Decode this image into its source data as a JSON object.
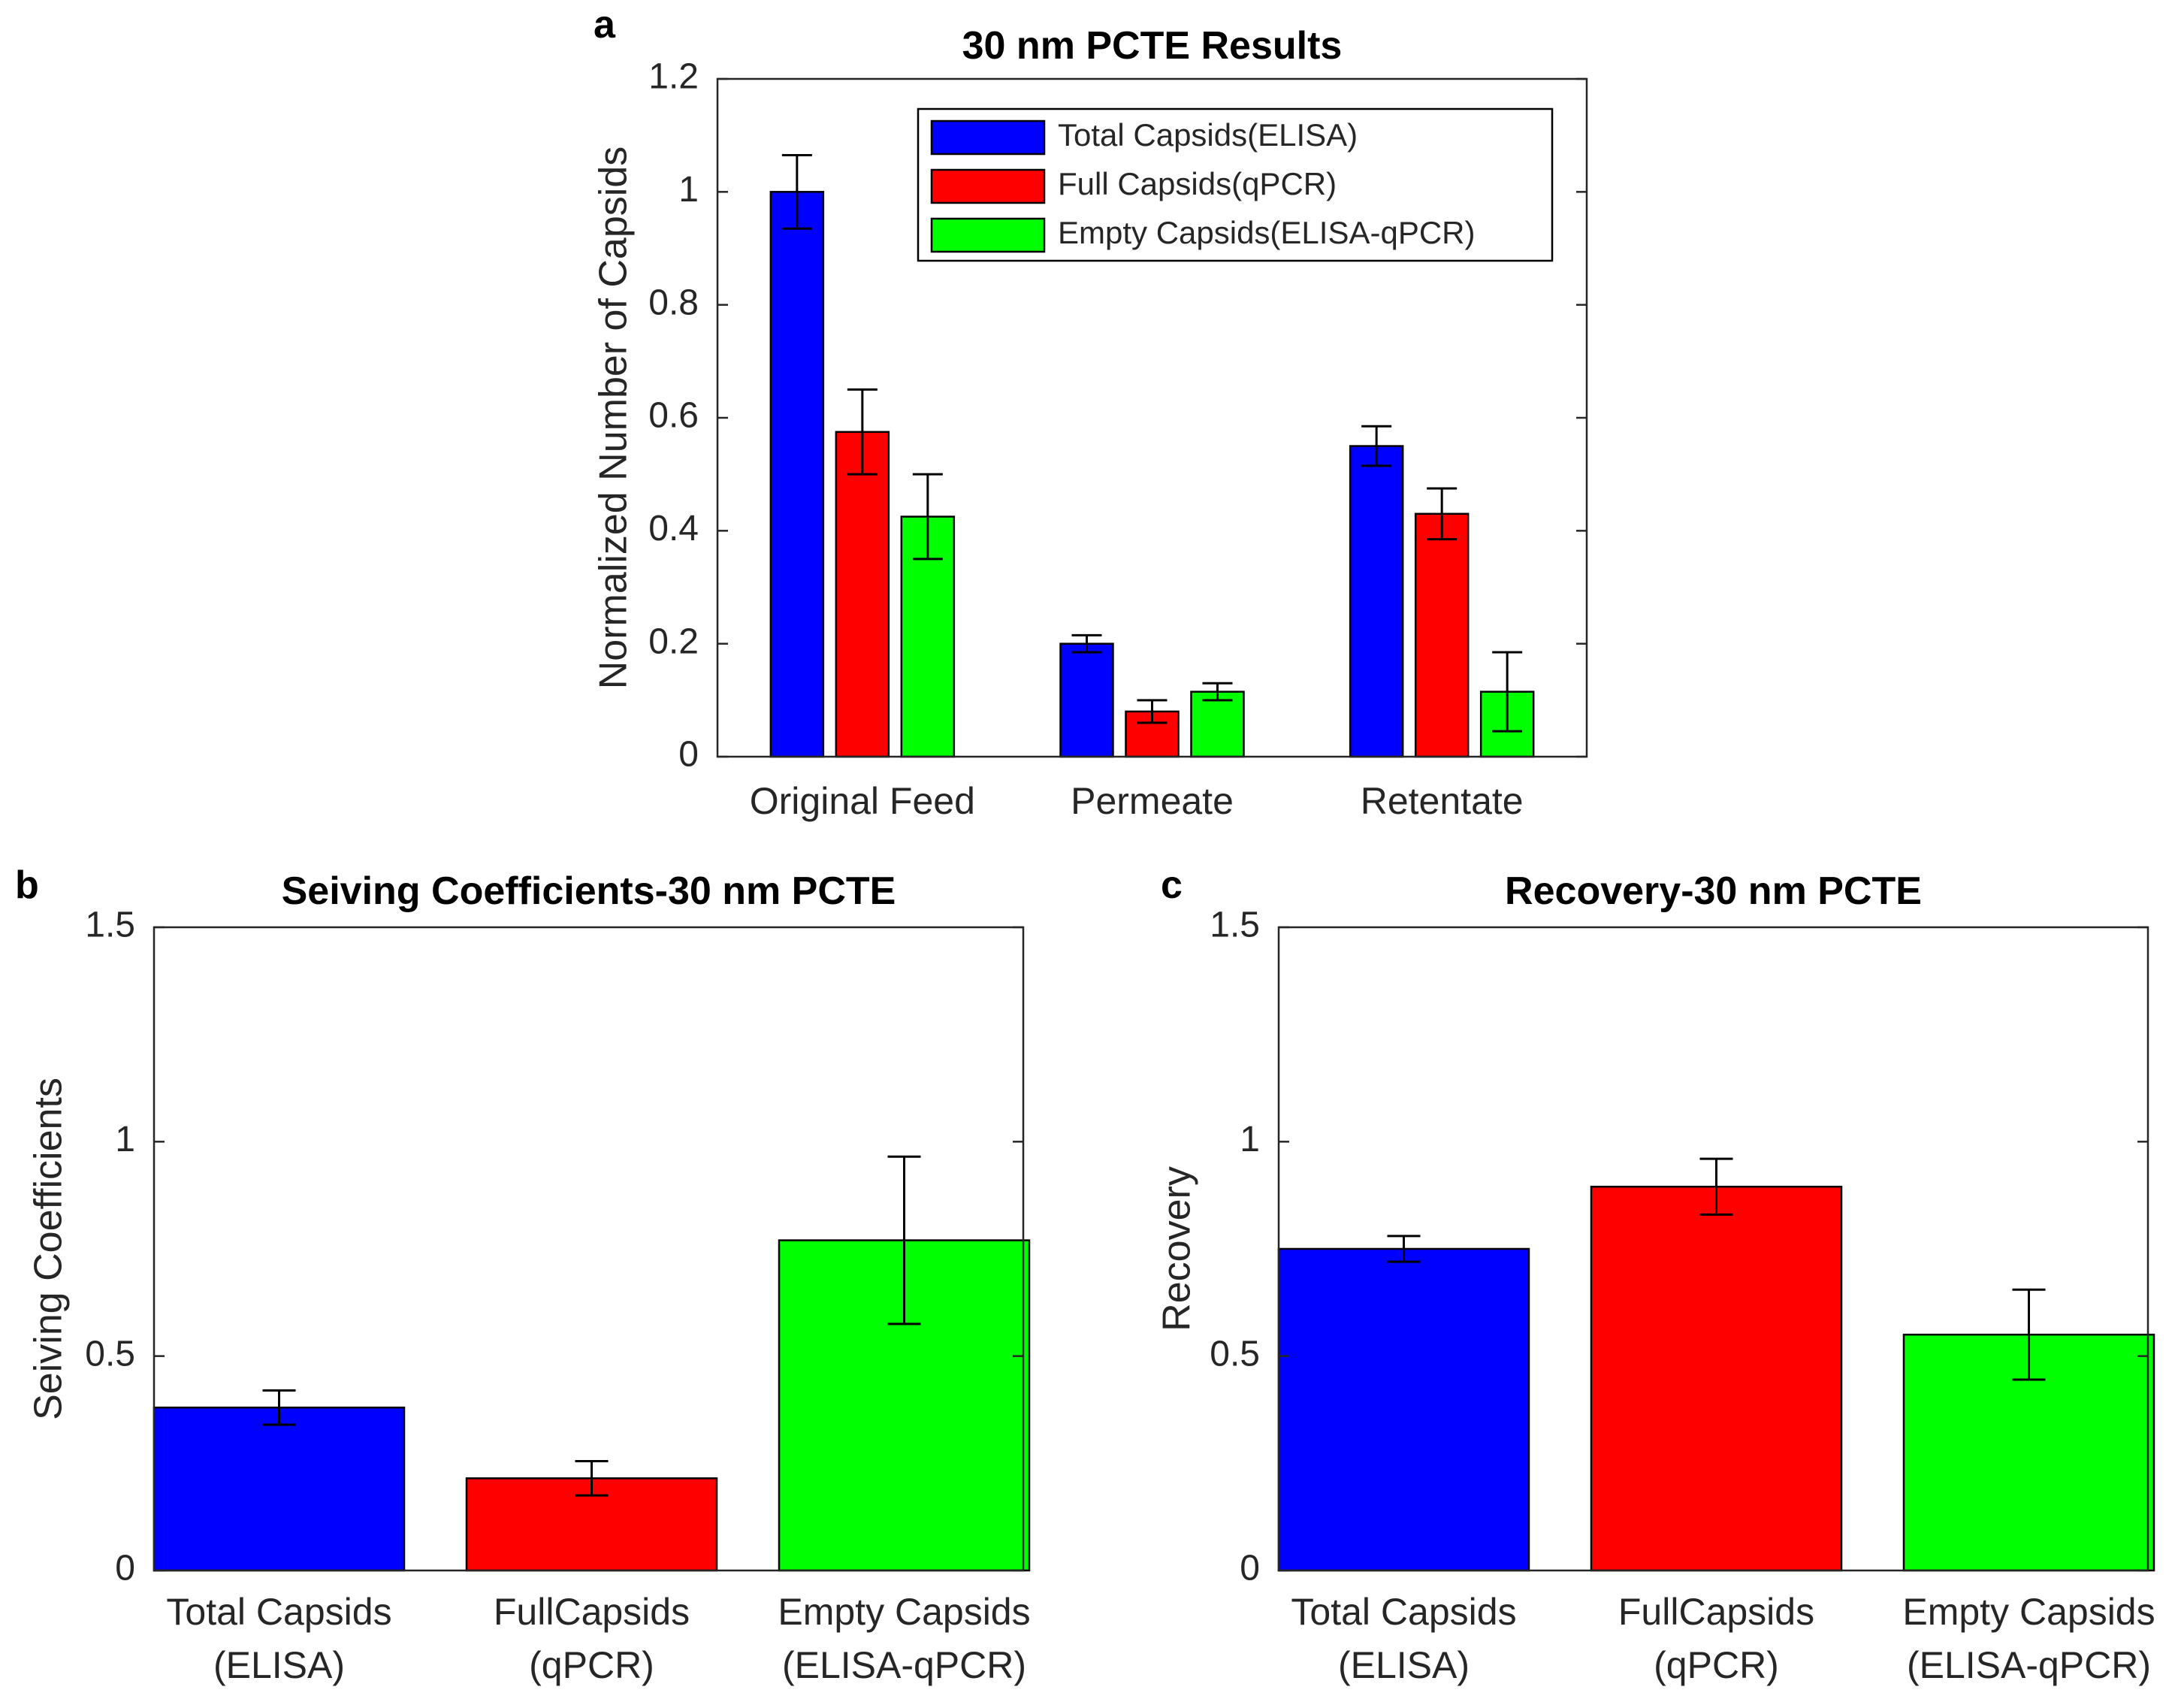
{
  "chart_data": [
    {
      "panel": "a",
      "type": "bar",
      "title": "30 nm PCTE Results",
      "xlabel": "",
      "ylabel": "Normalized Number of Capsids",
      "ylim": [
        0,
        1.2
      ],
      "yticks": [
        0,
        0.2,
        0.4,
        0.6,
        0.8,
        1,
        1.2
      ],
      "ytick_labels": [
        "0",
        "0.2",
        "0.4",
        "0.6",
        "0.8",
        "1",
        "1.2"
      ],
      "categories": [
        "Original Feed",
        "Permeate",
        "Retentate"
      ],
      "series": [
        {
          "name": "Total Capsids(ELISA)",
          "color": "#0000ff",
          "values": [
            1.0,
            0.2,
            0.55
          ],
          "errors": [
            0.065,
            0.015,
            0.035
          ]
        },
        {
          "name": "Full Capsids(qPCR)",
          "color": "#ff0000",
          "values": [
            0.575,
            0.08,
            0.43
          ],
          "errors": [
            0.075,
            0.02,
            0.045
          ]
        },
        {
          "name": "Empty Capsids(ELISA-qPCR)",
          "color": "#00ff00",
          "values": [
            0.425,
            0.115,
            0.115
          ],
          "errors": [
            0.075,
            0.015,
            0.07
          ]
        }
      ],
      "legend_position": "top-right",
      "grid": false
    },
    {
      "panel": "b",
      "type": "bar",
      "title": "Seiving Coefficients-30 nm PCTE",
      "xlabel": "",
      "ylabel": "Seiving Coefficients",
      "ylim": [
        0,
        1.5
      ],
      "yticks": [
        0,
        0.5,
        1,
        1.5
      ],
      "ytick_labels": [
        "0",
        "0.5",
        "1",
        "1.5"
      ],
      "categories": [
        [
          "Total Capsids",
          "(ELISA)"
        ],
        [
          "FullCapsids",
          "(qPCR)"
        ],
        [
          "Empty Capsids",
          "(ELISA-qPCR)"
        ]
      ],
      "colors": [
        "#0000ff",
        "#ff0000",
        "#00ff00"
      ],
      "values": [
        0.38,
        0.215,
        0.77
      ],
      "errors": [
        0.04,
        0.04,
        0.195
      ],
      "grid": false
    },
    {
      "panel": "c",
      "type": "bar",
      "title": "Recovery-30 nm PCTE",
      "xlabel": "",
      "ylabel": "Recovery",
      "ylim": [
        0,
        1.5
      ],
      "yticks": [
        0,
        0.5,
        1,
        1.5
      ],
      "ytick_labels": [
        "0",
        "0.5",
        "1",
        "1.5"
      ],
      "categories": [
        [
          "Total Capsids",
          "(ELISA)"
        ],
        [
          "FullCapsids",
          "(qPCR)"
        ],
        [
          "Empty Capsids",
          "(ELISA-qPCR)"
        ]
      ],
      "colors": [
        "#0000ff",
        "#ff0000",
        "#00ff00"
      ],
      "values": [
        0.75,
        0.895,
        0.55
      ],
      "errors": [
        0.03,
        0.065,
        0.105
      ],
      "grid": false
    }
  ]
}
